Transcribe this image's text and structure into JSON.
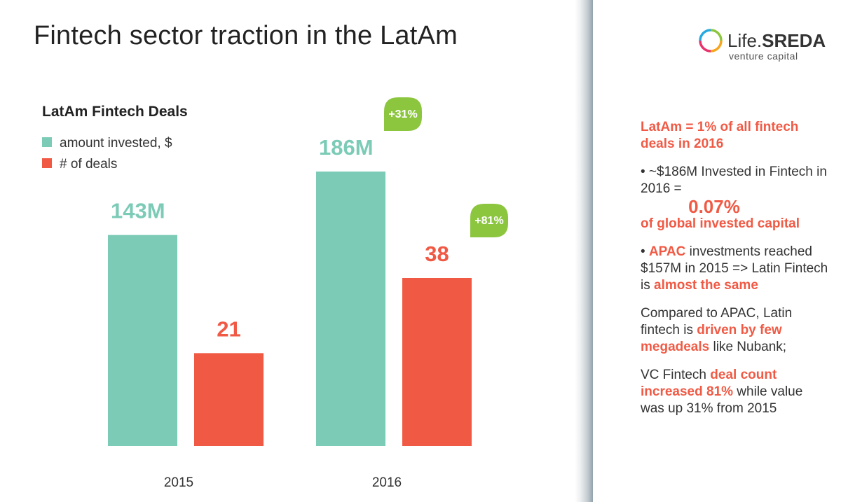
{
  "page": {
    "title": "Fintech sector traction in the LatAm"
  },
  "logo": {
    "name_light": "Life.",
    "name_bold": "SREDA",
    "tagline": "venture capital"
  },
  "chart_data": {
    "type": "bar",
    "title": "LatAm Fintech Deals",
    "categories": [
      "2015",
      "2016"
    ],
    "series": [
      {
        "name": "amount invested, $",
        "color": "#7ccbb7",
        "values": [
          143,
          186
        ],
        "labels": [
          "143M",
          "186M"
        ]
      },
      {
        "name": "# of deals",
        "color": "#f05a45",
        "values": [
          21,
          38
        ],
        "labels": [
          "21",
          "38"
        ]
      }
    ],
    "growth": [
      {
        "series": 0,
        "category": 1,
        "label": "+31%"
      },
      {
        "series": 1,
        "category": 1,
        "label": "+81%"
      }
    ],
    "growth_color": "#8cc63f",
    "grid": false,
    "legend": "top-left"
  },
  "notes": {
    "headline": "LatAm = 1% of all fintech deals in 2016",
    "p1_text": "• ~$186M Invested in Fintech in 2016 =",
    "p1_big": "0.07%",
    "p1_hl": "of global invested capital",
    "p2_pre": "• ",
    "p2_hl1": "APAC",
    "p2_text": " investments reached $157M in 2015 => Latin Fintech is ",
    "p2_hl2": "almost the same",
    "p3_pre": "Compared to APAC, Latin fintech is ",
    "p3_hl": "driven by few megadeals",
    "p3_post": " like Nubank;",
    "p4_pre": "VC Fintech ",
    "p4_hl": "deal count increased 81%",
    "p4_post": " while value was up 31% from 2015"
  }
}
